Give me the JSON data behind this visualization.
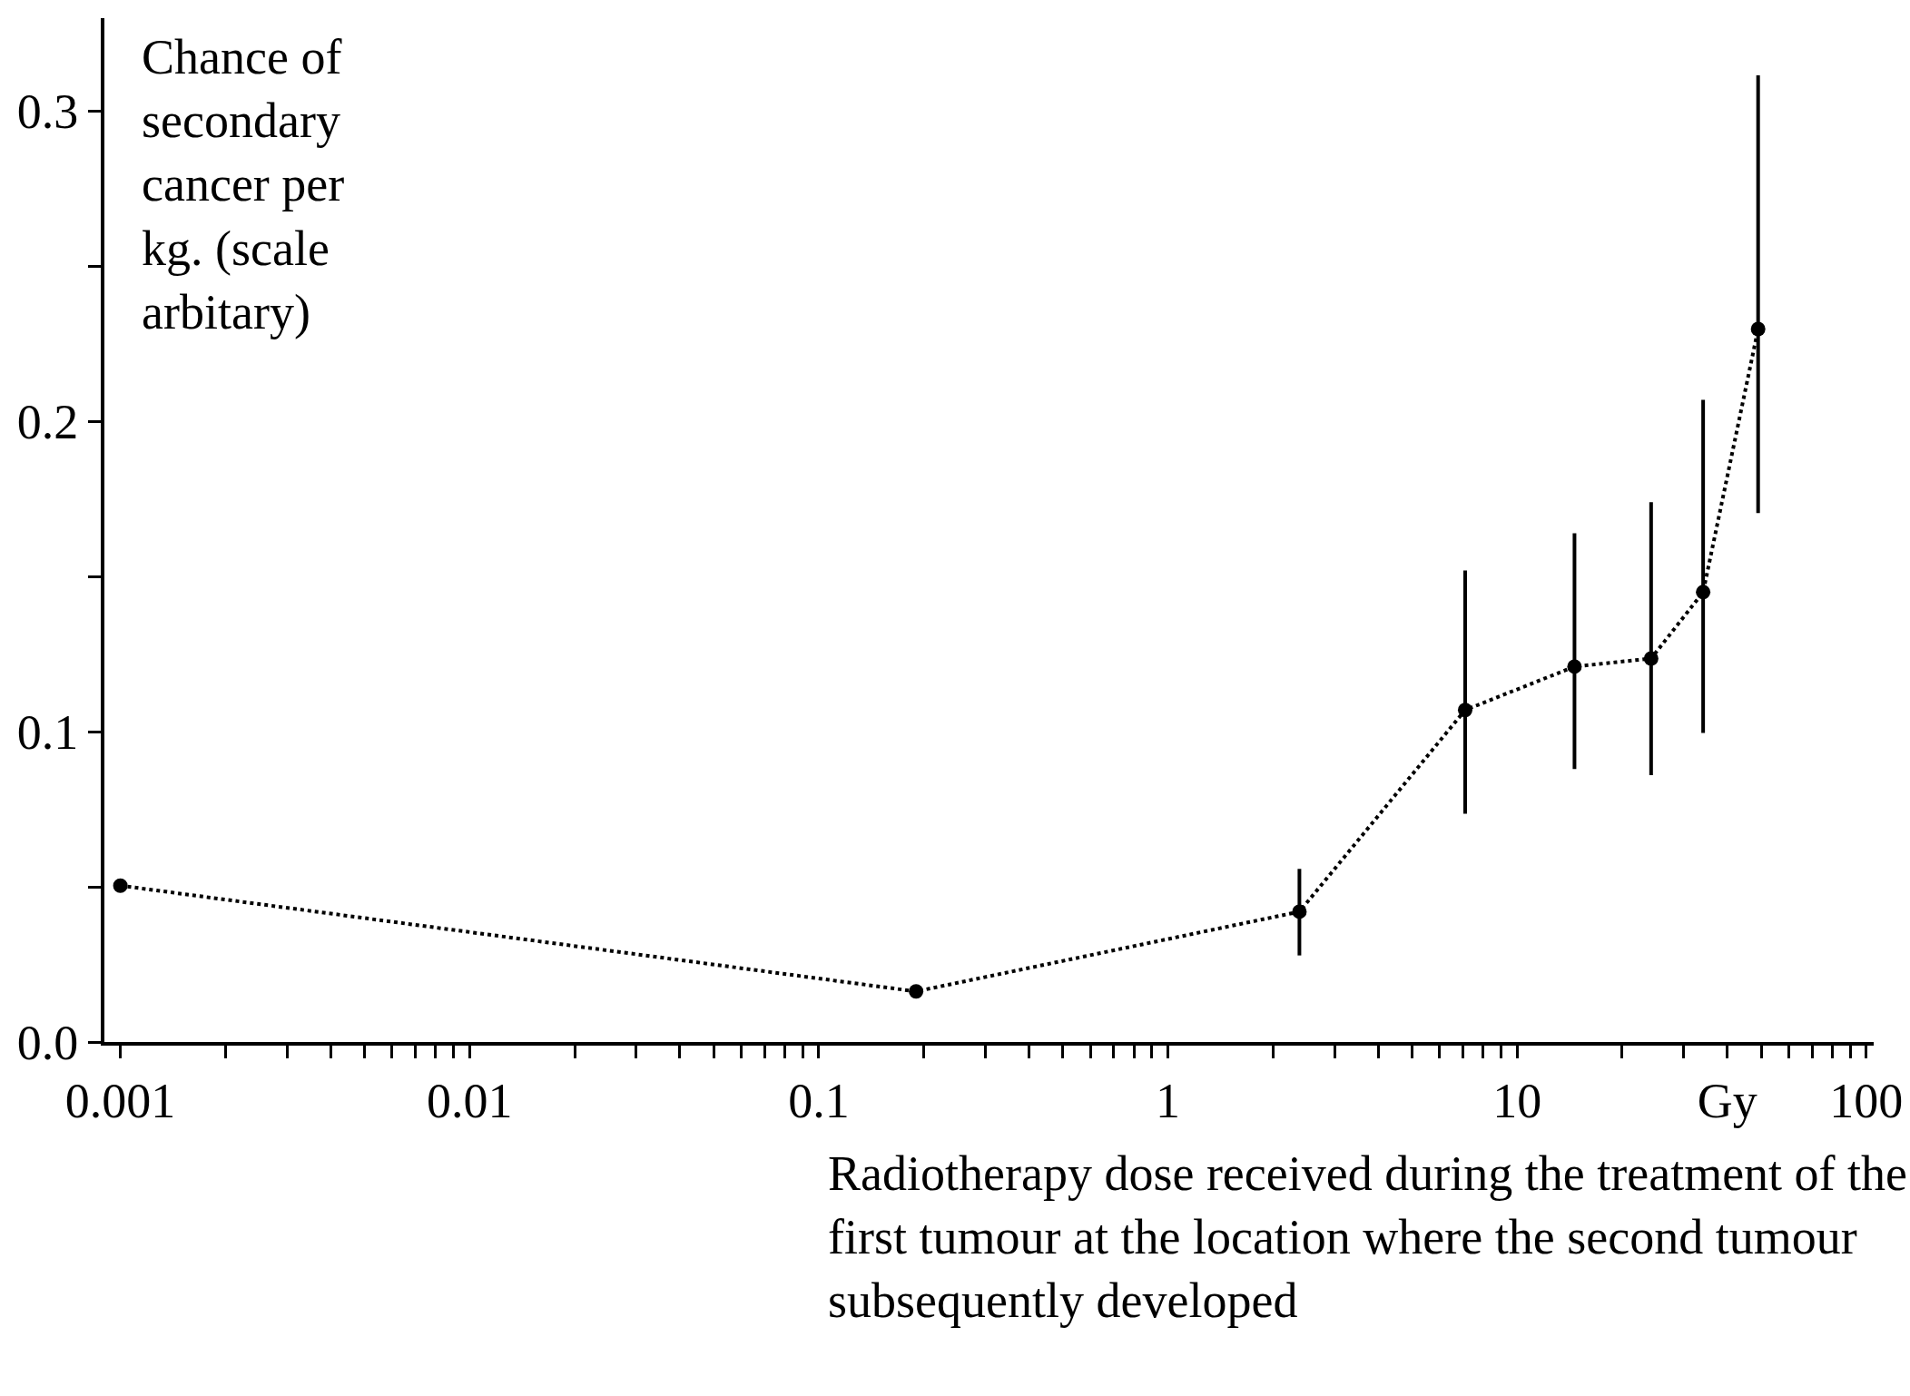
{
  "chart_data": {
    "type": "line",
    "xlabel": "Radiotherapy dose received during the treatment of the first tumour at the location where the second tumour subsequently developed",
    "ylabel": "Chance of secondary cancer per kg. (scale arbitary)",
    "x": [
      0.001,
      0.19,
      2.38,
      7.1,
      14.6,
      24.2,
      34.1,
      49
    ],
    "series": [
      {
        "color": "#000000",
        "values": [
          0.0504,
          0.0163,
          0.042,
          0.107,
          0.121,
          0.1236,
          0.145,
          0.2298
        ],
        "errors": [
          null,
          null,
          [
            0.0279,
            0.0558
          ],
          [
            0.0736,
            0.152
          ],
          [
            0.088,
            0.164
          ],
          [
            0.086,
            0.174
          ],
          [
            0.0996,
            0.207
          ],
          [
            0.1705,
            0.3116
          ]
        ]
      }
    ],
    "log": "x",
    "xlim": [
      0.0009,
      105
    ],
    "ylim": [
      0,
      0.33
    ],
    "xticks": [
      0.001,
      {
        "value": 0.002,
        "label": null
      },
      {
        "value": 0.003,
        "label": null
      },
      {
        "value": 0.004,
        "label": null
      },
      {
        "value": 0.005,
        "label": null
      },
      {
        "value": 0.006,
        "label": null
      },
      {
        "value": 0.007,
        "label": null
      },
      {
        "value": 0.008,
        "label": null
      },
      {
        "value": 0.009,
        "label": null
      },
      0.01,
      {
        "value": 0.02,
        "label": null
      },
      {
        "value": 0.03,
        "label": null
      },
      {
        "value": 0.04,
        "label": null
      },
      {
        "value": 0.05,
        "label": null
      },
      {
        "value": 0.06,
        "label": null
      },
      {
        "value": 0.07,
        "label": null
      },
      {
        "value": 0.08,
        "label": null
      },
      {
        "value": 0.09,
        "label": null
      },
      0.1,
      {
        "value": 0.2,
        "label": null
      },
      {
        "value": 0.3,
        "label": null
      },
      {
        "value": 0.4,
        "label": null
      },
      {
        "value": 0.5,
        "label": null
      },
      {
        "value": 0.6,
        "label": null
      },
      {
        "value": 0.7,
        "label": null
      },
      {
        "value": 0.8,
        "label": null
      },
      {
        "value": 0.9,
        "label": null
      },
      1,
      {
        "value": 2,
        "label": null
      },
      {
        "value": 3,
        "label": null
      },
      {
        "value": 4,
        "label": null
      },
      {
        "value": 5,
        "label": null
      },
      {
        "value": 6,
        "label": null
      },
      {
        "value": 7,
        "label": null
      },
      {
        "value": 8,
        "label": null
      },
      {
        "value": 9,
        "label": null
      },
      10,
      {
        "value": 20,
        "label": null
      },
      {
        "value": 30,
        "label": null
      },
      {
        "value": 40,
        "label": "Gy"
      },
      {
        "value": 50,
        "label": null
      },
      {
        "value": 60,
        "label": null
      },
      {
        "value": 70,
        "label": null
      },
      {
        "value": 80,
        "label": null
      },
      {
        "value": 90,
        "label": null
      },
      100
    ],
    "yticks": [
      {
        "value": 0,
        "label": "0.0"
      },
      {
        "value": 0.05,
        "label": null
      },
      0.1,
      {
        "value": 0.15,
        "label": null
      },
      0.2,
      {
        "value": 0.25,
        "label": null
      },
      0.3
    ],
    "marker": "circle",
    "line_style": "dotted"
  }
}
